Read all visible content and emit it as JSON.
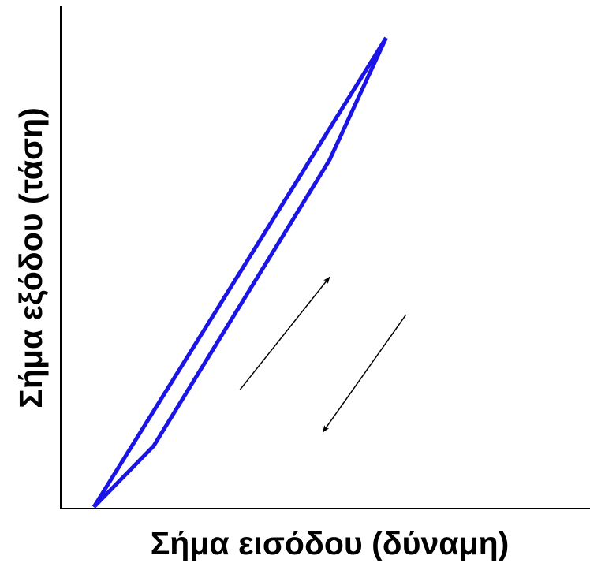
{
  "chart_data": {
    "type": "line",
    "title": "",
    "xlabel": "Σήμα εισόδου (δύναμη)",
    "ylabel": "Σήμα εξόδου (τάση)",
    "xlim": [
      0,
      1
    ],
    "ylim": [
      0,
      1
    ],
    "grid": false,
    "tick_labels": false,
    "series": [
      {
        "color": "#1a14e6",
        "points": [
          [
            0.0,
            0.0
          ],
          [
            0.88,
            1.0
          ]
        ]
      },
      {
        "color": "#1a14e6",
        "points": [
          [
            0.0,
            0.0
          ],
          [
            0.18,
            0.13
          ],
          [
            0.71,
            0.74
          ],
          [
            0.88,
            1.0
          ]
        ]
      }
    ],
    "annotations": [
      {
        "type": "arrow",
        "direction": "up-right",
        "meaning": "loading",
        "from": [
          0.44,
          0.25
        ],
        "to": [
          0.71,
          0.49
        ]
      },
      {
        "type": "arrow",
        "direction": "down-left",
        "meaning": "unloading",
        "from": [
          0.94,
          0.41
        ],
        "to": [
          0.69,
          0.16
        ]
      }
    ]
  }
}
